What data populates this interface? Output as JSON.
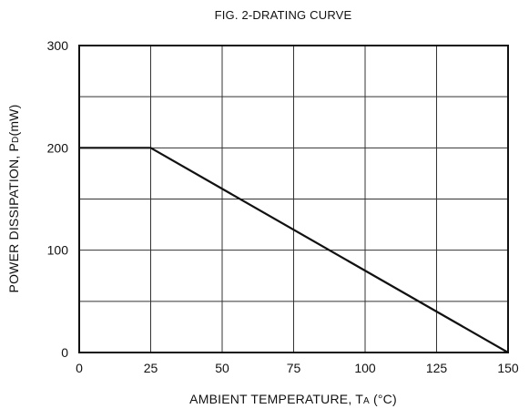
{
  "chart_data": {
    "type": "line",
    "title": "FIG. 2-DRATING CURVE",
    "xlabel": {
      "main": "AMBIENT TEMPERATURE, T",
      "sub": "A",
      "tail": " (°C)"
    },
    "ylabel": {
      "main": "POWER DISSIPATION, P",
      "sub": "D",
      "tail": "(mW)"
    },
    "xlim": [
      0,
      150
    ],
    "ylim": [
      0,
      300
    ],
    "x_ticks": [
      0,
      25,
      50,
      75,
      100,
      125,
      150
    ],
    "y_ticks": [
      0,
      100,
      200,
      300
    ],
    "x_grid": [
      0,
      25,
      50,
      75,
      100,
      125,
      150
    ],
    "y_grid": [
      0,
      50,
      100,
      150,
      200,
      250,
      300
    ],
    "grid": true,
    "series": [
      {
        "x": [
          0,
          25,
          150
        ],
        "y": [
          200,
          200,
          0
        ]
      }
    ],
    "colors": {
      "line": "#111111",
      "grid": "#333333",
      "frame": "#111111"
    }
  }
}
